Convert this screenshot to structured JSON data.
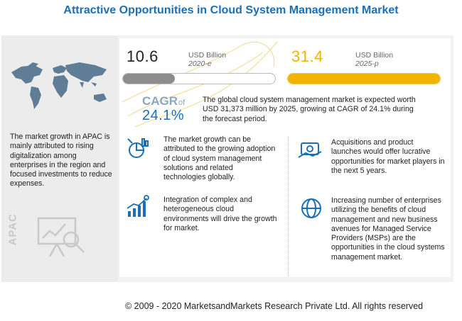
{
  "title": "Attractive Opportunities in Cloud System Management Market",
  "stats": {
    "start": {
      "value": "10.6",
      "unit": "USD Billion",
      "period": "2020-e",
      "fill_fraction": 0.34
    },
    "end": {
      "value": "31.4",
      "unit": "USD Billion",
      "period": "2025-p",
      "fill_fraction": 1.0
    }
  },
  "cagr": {
    "label": "CAGR",
    "of": "of",
    "value": "24.1%",
    "text": "The global cloud system management market is expected worth USD 31,373 million by 2025, growing at CAGR of 24.1% during the forecast period."
  },
  "left": {
    "apac_text": "The market growth in APAC is mainly attributed to rising digitalization among enterprises in the region and focused investments to reduce expenses.",
    "apac_label": "APAC"
  },
  "items": [
    {
      "text": "The market growth can be attributed to the growing adoption of cloud system management solutions and related technologies globally."
    },
    {
      "text": "Acquisitions and product launches would offer lucrative opportunities for market players in the next 5 years."
    },
    {
      "text": "Integration of complex and heterogeneous cloud environments will drive the growth for market."
    },
    {
      "text": "Increasing number of enterprises utilizing the benefits of cloud management and new business avenues for Managed Service Providers (MSPs) are the opportunities in the cloud systems management market."
    }
  ],
  "footer": "© 2009 - 2020 MarketsandMarkets Research Private Ltd. All rights reserved",
  "colors": {
    "title": "#1a6fb5",
    "accent": "#f0b400",
    "gray_bar": "#8c8c8c",
    "icon": "#1a6fb5"
  }
}
